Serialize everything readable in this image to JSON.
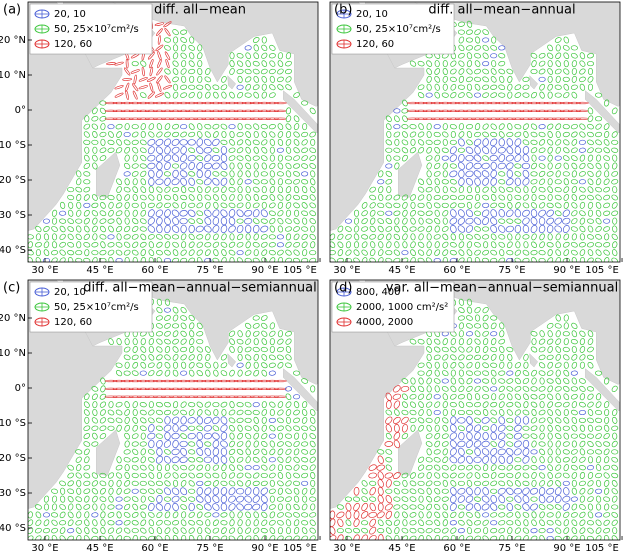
{
  "panels": [
    {
      "label": "(a)",
      "title": "diff. all−mean",
      "legend": [
        "20, 10",
        "50, 25×10⁷cm²/s",
        "120, 60"
      ]
    },
    {
      "label": "(b)",
      "title": "diff. all−mean−annual",
      "legend": [
        "20, 10",
        "50, 25×10⁷cm²/s",
        "120, 60"
      ]
    },
    {
      "label": "(c)",
      "title": "diff. all−mean−annual−semiannual",
      "legend": [
        "20, 10",
        "50, 25×10⁷cm²/s",
        "120, 60"
      ]
    },
    {
      "label": "(d)",
      "title": "var. all−mean−annual−semiannual",
      "legend": [
        "800, 400",
        "2000, 1000 cm²/s²",
        "4000, 2000"
      ]
    }
  ],
  "lon_ticks": [
    {
      "value": 30,
      "label": "30 °E"
    },
    {
      "value": 45,
      "label": "45 °E"
    },
    {
      "value": 60,
      "label": "60 °E"
    },
    {
      "value": 75,
      "label": "75 °E"
    },
    {
      "value": 90,
      "label": "90 °E"
    },
    {
      "value": 105,
      "label": "105 °E"
    }
  ],
  "lat_ticks": [
    {
      "value": 20,
      "label": "20 °N"
    },
    {
      "value": 10,
      "label": "10 °N"
    },
    {
      "value": 0,
      "label": "0°"
    },
    {
      "value": -10,
      "label": "10 °S"
    },
    {
      "value": -20,
      "label": "20 °S"
    },
    {
      "value": -30,
      "label": "30 °S"
    },
    {
      "value": -40,
      "label": "40 °S"
    }
  ]
}
